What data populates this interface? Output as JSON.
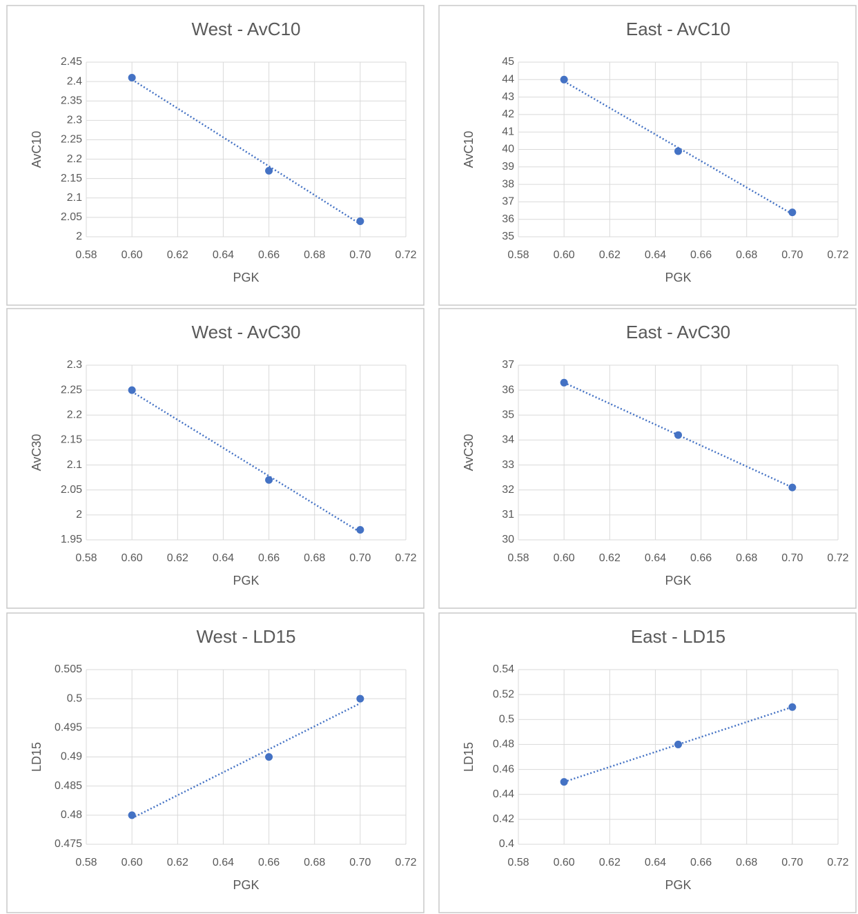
{
  "chart_data": [
    {
      "type": "scatter",
      "title": "West - AvC10",
      "xlabel": "PGK",
      "ylabel": "AvC10",
      "color": "#4472c4",
      "trendline": "linear",
      "grid": true,
      "x": [
        0.6,
        0.66,
        0.7
      ],
      "y": [
        2.41,
        2.17,
        2.04
      ],
      "xlim": [
        0.58,
        0.72
      ],
      "xticks": [
        0.58,
        {
          "value": 0.6,
          "label": "0.60"
        },
        0.62,
        0.64,
        0.66,
        0.68,
        {
          "value": 0.7,
          "label": "0.70"
        },
        0.72
      ],
      "ylim": [
        2,
        2.45
      ],
      "yticks": [
        2,
        2.05,
        2.1,
        2.15,
        2.2,
        2.25,
        2.3,
        2.35,
        2.4,
        2.45
      ]
    },
    {
      "type": "scatter",
      "title": "East - AvC10",
      "xlabel": "PGK",
      "ylabel": "AvC10",
      "color": "#4472c4",
      "trendline": "linear",
      "grid": true,
      "x": [
        0.6,
        0.65,
        0.7
      ],
      "y": [
        44,
        39.9,
        36.4
      ],
      "xlim": [
        0.58,
        0.72
      ],
      "xticks": [
        0.58,
        {
          "value": 0.6,
          "label": "0.60"
        },
        0.62,
        0.64,
        0.66,
        0.68,
        {
          "value": 0.7,
          "label": "0.70"
        },
        0.72
      ],
      "ylim": [
        35,
        45
      ],
      "yticks": [
        35,
        36,
        37,
        38,
        39,
        40,
        41,
        42,
        43,
        44,
        45
      ]
    },
    {
      "type": "scatter",
      "title": "West - AvC30",
      "xlabel": "PGK",
      "ylabel": "AvC30",
      "color": "#4472c4",
      "trendline": "linear",
      "grid": true,
      "x": [
        0.6,
        0.66,
        0.7
      ],
      "y": [
        2.25,
        2.07,
        1.97
      ],
      "xlim": [
        0.58,
        0.72
      ],
      "xticks": [
        0.58,
        {
          "value": 0.6,
          "label": "0.60"
        },
        0.62,
        0.64,
        0.66,
        0.68,
        {
          "value": 0.7,
          "label": "0.70"
        },
        0.72
      ],
      "ylim": [
        1.95,
        2.3
      ],
      "yticks": [
        1.95,
        2,
        2.05,
        2.1,
        2.15,
        2.2,
        2.25,
        2.3
      ]
    },
    {
      "type": "scatter",
      "title": "East - AvC30",
      "xlabel": "PGK",
      "ylabel": "AvC30",
      "color": "#4472c4",
      "trendline": "linear",
      "grid": true,
      "x": [
        0.6,
        0.65,
        0.7
      ],
      "y": [
        36.3,
        34.2,
        32.1
      ],
      "xlim": [
        0.58,
        0.72
      ],
      "xticks": [
        0.58,
        {
          "value": 0.6,
          "label": "0.60"
        },
        0.62,
        0.64,
        0.66,
        0.68,
        {
          "value": 0.7,
          "label": "0.70"
        },
        0.72
      ],
      "ylim": [
        30,
        37
      ],
      "yticks": [
        30,
        31,
        32,
        33,
        34,
        35,
        36,
        37
      ]
    },
    {
      "type": "scatter",
      "title": "West - LD15",
      "xlabel": "PGK",
      "ylabel": "LD15",
      "color": "#4472c4",
      "trendline": "linear",
      "grid": true,
      "x": [
        0.6,
        0.66,
        0.7
      ],
      "y": [
        0.48,
        0.49,
        0.5
      ],
      "xlim": [
        0.58,
        0.72
      ],
      "xticks": [
        0.58,
        {
          "value": 0.6,
          "label": "0.60"
        },
        0.62,
        0.64,
        0.66,
        0.68,
        {
          "value": 0.7,
          "label": "0.70"
        },
        0.72
      ],
      "ylim": [
        0.475,
        0.505
      ],
      "yticks": [
        0.475,
        0.48,
        0.485,
        0.49,
        0.495,
        0.5,
        0.505
      ]
    },
    {
      "type": "scatter",
      "title": "East - LD15",
      "xlabel": "PGK",
      "ylabel": "LD15",
      "color": "#4472c4",
      "trendline": "linear",
      "grid": true,
      "x": [
        0.6,
        0.65,
        0.7
      ],
      "y": [
        0.45,
        0.48,
        0.51
      ],
      "xlim": [
        0.58,
        0.72
      ],
      "xticks": [
        0.58,
        {
          "value": 0.6,
          "label": "0.60"
        },
        0.62,
        0.64,
        0.66,
        0.68,
        {
          "value": 0.7,
          "label": "0.70"
        },
        0.72
      ],
      "ylim": [
        0.4,
        0.54
      ],
      "yticks": [
        0.4,
        0.42,
        0.44,
        0.46,
        0.48,
        0.5,
        0.52,
        0.54
      ]
    }
  ]
}
